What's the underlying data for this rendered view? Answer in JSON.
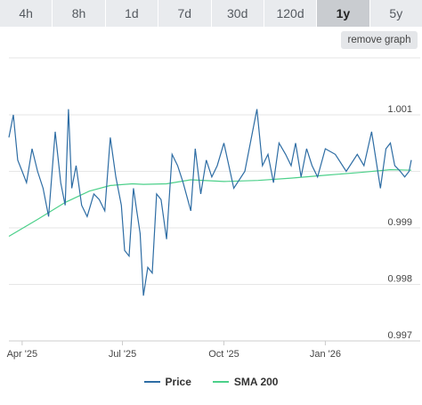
{
  "toolbar": {
    "ranges": [
      "4h",
      "8h",
      "1d",
      "7d",
      "30d",
      "120d",
      "1y",
      "5y"
    ],
    "active": "1y",
    "remove_label": "remove graph"
  },
  "colors": {
    "price": "#2e6da4",
    "sma": "#4cd08a",
    "grid": "#e6e6e6"
  },
  "chart_data": {
    "type": "line",
    "xlabel": "",
    "ylabel": "",
    "x_ticks": [
      "Apr '25",
      "Jul '25",
      "Oct '25",
      "Jan '26"
    ],
    "y_ticks": [
      0.997,
      0.998,
      0.999,
      1.001
    ],
    "ylim": [
      0.997,
      1.001
    ],
    "xlim": [
      "2025-03-20",
      "2026-03-20"
    ],
    "grid": true,
    "legend_position": "bottom-center",
    "series": [
      {
        "name": "Price",
        "x": [
          "2025-03-20",
          "2025-03-24",
          "2025-03-28",
          "2025-04-01",
          "2025-04-05",
          "2025-04-10",
          "2025-04-15",
          "2025-04-20",
          "2025-04-25",
          "2025-05-01",
          "2025-05-06",
          "2025-05-10",
          "2025-05-13",
          "2025-05-16",
          "2025-05-20",
          "2025-05-25",
          "2025-05-30",
          "2025-06-05",
          "2025-06-10",
          "2025-06-15",
          "2025-06-20",
          "2025-06-25",
          "2025-06-30",
          "2025-07-03",
          "2025-07-07",
          "2025-07-11",
          "2025-07-14",
          "2025-07-17",
          "2025-07-20",
          "2025-07-24",
          "2025-07-28",
          "2025-08-01",
          "2025-08-05",
          "2025-08-10",
          "2025-08-15",
          "2025-08-20",
          "2025-08-25",
          "2025-09-01",
          "2025-09-05",
          "2025-09-10",
          "2025-09-15",
          "2025-09-20",
          "2025-09-25",
          "2025-10-01",
          "2025-10-10",
          "2025-10-20",
          "2025-10-31",
          "2025-11-05",
          "2025-11-10",
          "2025-11-15",
          "2025-11-20",
          "2025-11-26",
          "2025-12-01",
          "2025-12-05",
          "2025-12-10",
          "2025-12-15",
          "2025-12-20",
          "2025-12-25",
          "2026-01-01",
          "2026-01-10",
          "2026-01-20",
          "2026-01-30",
          "2026-02-05",
          "2026-02-12",
          "2026-02-20",
          "2026-02-25",
          "2026-03-01",
          "2026-03-05",
          "2026-03-10",
          "2026-03-14",
          "2026-03-18",
          "2026-03-20"
        ],
        "values": [
          1.0006,
          1.001,
          1.0002,
          1.0,
          0.9998,
          1.0004,
          1.0,
          0.9997,
          0.9992,
          1.0007,
          0.9998,
          0.9994,
          1.0011,
          0.9997,
          1.0001,
          0.9994,
          0.9992,
          0.9996,
          0.9995,
          0.9993,
          1.0006,
          0.9999,
          0.9994,
          0.9986,
          0.9985,
          0.9997,
          0.9993,
          0.9989,
          0.9978,
          0.9983,
          0.9982,
          0.9996,
          0.9995,
          0.9988,
          1.0003,
          1.0001,
          0.9998,
          0.9993,
          1.0004,
          0.9996,
          1.0002,
          0.9999,
          1.0001,
          1.0005,
          0.9997,
          1.0,
          1.0011,
          1.0001,
          1.0003,
          0.9998,
          1.0005,
          1.0003,
          1.0001,
          1.0005,
          0.9999,
          1.0004,
          1.0001,
          0.9999,
          1.0004,
          1.0003,
          1.0,
          1.0003,
          1.0001,
          1.0007,
          0.9997,
          1.0004,
          1.0005,
          1.0001,
          1.0,
          0.9999,
          1.0,
          1.0002
        ]
      },
      {
        "name": "SMA 200",
        "x": [
          "2025-03-20",
          "2025-04-15",
          "2025-05-10",
          "2025-06-01",
          "2025-06-20",
          "2025-07-10",
          "2025-07-20",
          "2025-08-10",
          "2025-09-01",
          "2025-10-01",
          "2025-11-01",
          "2025-12-01",
          "2026-01-01",
          "2026-02-01",
          "2026-03-01",
          "2026-03-20"
        ],
        "values": [
          0.99885,
          0.99915,
          0.99945,
          0.99965,
          0.99975,
          0.99978,
          0.99977,
          0.99978,
          0.99985,
          0.99982,
          0.99984,
          0.99988,
          0.99993,
          0.99998,
          1.00003,
          1.00002
        ]
      }
    ]
  }
}
